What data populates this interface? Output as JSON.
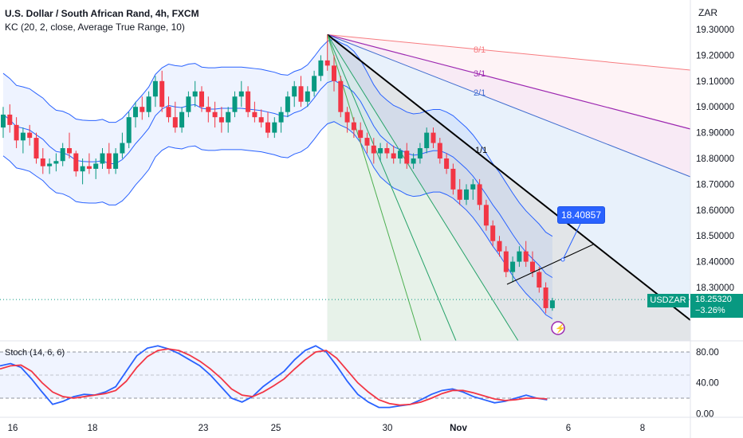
{
  "header": {
    "title": "U.S. Dollar / South African Rand, 4h, FXCM",
    "indicator": "KC (20, 2, close, Average True Range, 10)",
    "currency": "ZAR"
  },
  "chart_data": {
    "type": "candlestick",
    "symbol": "USDZAR",
    "last_price": "18.25320",
    "change": "−3.26%",
    "price_axis": {
      "ticks": [
        19.3,
        19.2,
        19.1,
        19.0,
        18.9,
        18.8,
        18.7,
        18.6,
        18.5,
        18.4,
        18.3
      ],
      "tick_labels": [
        "19.30000",
        "19.20000",
        "19.10000",
        "19.00000",
        "18.90000",
        "18.80000",
        "18.70000",
        "18.60000",
        "18.50000",
        "18.40000",
        "18.30000"
      ],
      "range": [
        18.18,
        19.34
      ]
    },
    "time_axis": {
      "labels": [
        "16",
        "18",
        "23",
        "25",
        "30",
        "Nov",
        "6",
        "8"
      ]
    },
    "colors": {
      "up": "#089981",
      "down": "#f23645",
      "band": "#2962ff",
      "stoch_k": "#2962ff",
      "stoch_d": "#f23645"
    },
    "candles_ohlc": [
      [
        18.92,
        19.0,
        18.88,
        18.97
      ],
      [
        18.97,
        19.01,
        18.9,
        18.93
      ],
      [
        18.93,
        18.96,
        18.84,
        18.87
      ],
      [
        18.87,
        18.92,
        18.82,
        18.9
      ],
      [
        18.9,
        18.93,
        18.85,
        18.88
      ],
      [
        18.88,
        18.9,
        18.78,
        18.8
      ],
      [
        18.8,
        18.84,
        18.74,
        18.77
      ],
      [
        18.77,
        18.8,
        18.74,
        18.78
      ],
      [
        18.78,
        18.82,
        18.75,
        18.79
      ],
      [
        18.79,
        18.86,
        18.77,
        18.84
      ],
      [
        18.84,
        18.9,
        18.8,
        18.82
      ],
      [
        18.82,
        18.83,
        18.73,
        18.75
      ],
      [
        18.75,
        18.8,
        18.7,
        18.77
      ],
      [
        18.77,
        18.82,
        18.74,
        18.76
      ],
      [
        18.76,
        18.8,
        18.72,
        18.78
      ],
      [
        18.78,
        18.84,
        18.76,
        18.82
      ],
      [
        18.82,
        18.86,
        18.74,
        18.76
      ],
      [
        18.76,
        18.84,
        18.74,
        18.82
      ],
      [
        18.82,
        18.9,
        18.8,
        18.86
      ],
      [
        18.86,
        18.98,
        18.84,
        18.96
      ],
      [
        18.96,
        19.02,
        18.92,
        19.0
      ],
      [
        19.0,
        19.04,
        18.95,
        18.98
      ],
      [
        18.98,
        19.06,
        18.96,
        19.04
      ],
      [
        19.04,
        19.12,
        19.0,
        19.1
      ],
      [
        19.1,
        19.14,
        18.98,
        19.0
      ],
      [
        19.0,
        19.04,
        18.94,
        18.96
      ],
      [
        18.96,
        19.02,
        18.9,
        18.92
      ],
      [
        18.92,
        19.0,
        18.9,
        18.98
      ],
      [
        18.98,
        19.06,
        18.96,
        19.04
      ],
      [
        19.04,
        19.1,
        19.0,
        19.06
      ],
      [
        19.06,
        19.08,
        18.98,
        19.0
      ],
      [
        19.0,
        19.04,
        18.94,
        18.98
      ],
      [
        18.98,
        19.02,
        18.92,
        18.96
      ],
      [
        18.96,
        19.0,
        18.9,
        18.94
      ],
      [
        18.94,
        19.0,
        18.9,
        18.98
      ],
      [
        18.98,
        19.06,
        18.96,
        19.04
      ],
      [
        19.04,
        19.1,
        19.0,
        19.06
      ],
      [
        19.06,
        19.08,
        18.96,
        18.98
      ],
      [
        18.98,
        19.02,
        18.94,
        18.96
      ],
      [
        18.96,
        18.99,
        18.92,
        18.94
      ],
      [
        18.94,
        18.98,
        18.88,
        18.9
      ],
      [
        18.9,
        18.96,
        18.88,
        18.94
      ],
      [
        18.94,
        19.0,
        18.9,
        18.98
      ],
      [
        18.98,
        19.06,
        18.96,
        19.04
      ],
      [
        19.04,
        19.1,
        19.0,
        19.08
      ],
      [
        19.08,
        19.12,
        19.0,
        19.02
      ],
      [
        19.02,
        19.08,
        19.0,
        19.06
      ],
      [
        19.06,
        19.14,
        19.04,
        19.12
      ],
      [
        19.12,
        19.2,
        19.1,
        19.18
      ],
      [
        19.18,
        19.28,
        19.14,
        19.16
      ],
      [
        19.16,
        19.2,
        19.06,
        19.1
      ],
      [
        19.1,
        19.12,
        18.96,
        18.98
      ],
      [
        18.98,
        19.0,
        18.9,
        18.94
      ],
      [
        18.94,
        18.96,
        18.88,
        18.91
      ],
      [
        18.91,
        18.94,
        18.86,
        18.88
      ],
      [
        18.88,
        18.9,
        18.82,
        18.85
      ],
      [
        18.85,
        18.88,
        18.78,
        18.82
      ],
      [
        18.82,
        18.86,
        18.79,
        18.84
      ],
      [
        18.84,
        18.86,
        18.8,
        18.82
      ],
      [
        18.82,
        18.85,
        18.78,
        18.8
      ],
      [
        18.8,
        18.84,
        18.78,
        18.83
      ],
      [
        18.83,
        18.86,
        18.76,
        18.78
      ],
      [
        18.78,
        18.82,
        18.76,
        18.8
      ],
      [
        18.8,
        18.86,
        18.78,
        18.84
      ],
      [
        18.84,
        18.92,
        18.82,
        18.9
      ],
      [
        18.9,
        18.92,
        18.84,
        18.86
      ],
      [
        18.86,
        18.88,
        18.78,
        18.8
      ],
      [
        18.8,
        18.82,
        18.74,
        18.76
      ],
      [
        18.76,
        18.78,
        18.66,
        18.68
      ],
      [
        18.68,
        18.72,
        18.62,
        18.64
      ],
      [
        18.64,
        18.7,
        18.62,
        18.68
      ],
      [
        18.68,
        18.72,
        18.64,
        18.7
      ],
      [
        18.7,
        18.72,
        18.6,
        18.62
      ],
      [
        18.62,
        18.64,
        18.52,
        18.54
      ],
      [
        18.54,
        18.56,
        18.46,
        18.48
      ],
      [
        18.48,
        18.5,
        18.42,
        18.44
      ],
      [
        18.44,
        18.46,
        18.34,
        18.36
      ],
      [
        18.36,
        18.42,
        18.32,
        18.4
      ],
      [
        18.4,
        18.46,
        18.38,
        18.44
      ],
      [
        18.44,
        18.48,
        18.38,
        18.4
      ],
      [
        18.4,
        18.44,
        18.34,
        18.36
      ],
      [
        18.36,
        18.38,
        18.28,
        18.3
      ],
      [
        18.3,
        18.32,
        18.2,
        18.22
      ],
      [
        18.22,
        18.26,
        18.21,
        18.25
      ]
    ],
    "fan_labels": [
      "8/1",
      "3/1",
      "2/1",
      "1/1"
    ],
    "trend_line_value_label": "18.40857",
    "stoch": {
      "label": "Stoch (14, 6, 6)",
      "levels": [
        80,
        50,
        20
      ],
      "tick_labels": [
        "80.00",
        "40.00",
        "0.00"
      ],
      "k": [
        62,
        65,
        60,
        45,
        28,
        12,
        16,
        22,
        25,
        24,
        28,
        35,
        55,
        75,
        85,
        88,
        84,
        78,
        70,
        62,
        50,
        35,
        20,
        15,
        22,
        35,
        45,
        55,
        70,
        82,
        88,
        80,
        62,
        42,
        25,
        15,
        8,
        8,
        10,
        12,
        18,
        25,
        30,
        32,
        28,
        22,
        18,
        14,
        16,
        20,
        24,
        20,
        18
      ],
      "d": [
        58,
        62,
        63,
        55,
        40,
        28,
        22,
        20,
        22,
        24,
        26,
        30,
        42,
        60,
        74,
        82,
        84,
        82,
        76,
        68,
        58,
        46,
        32,
        24,
        22,
        28,
        36,
        45,
        58,
        70,
        80,
        82,
        72,
        56,
        40,
        28,
        18,
        13,
        11,
        12,
        15,
        20,
        26,
        30,
        30,
        27,
        23,
        19,
        17,
        18,
        20,
        20,
        19
      ]
    }
  }
}
